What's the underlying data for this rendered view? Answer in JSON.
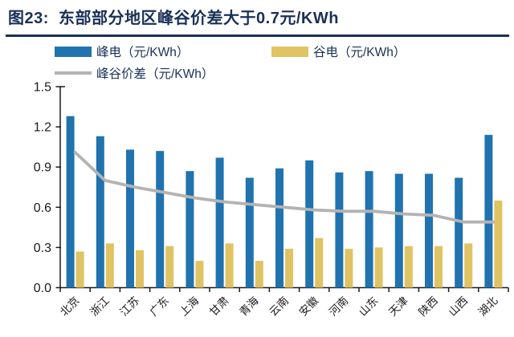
{
  "header": {
    "title": "图23:  东部部分地区峰谷价差大于0.7元/KWh"
  },
  "legend": {
    "peak_label": "峰电（元/KWh）",
    "valley_label": "谷电（元/KWh）",
    "diff_label": "峰谷价差（元/KWh）"
  },
  "colors": {
    "title_navy": "#1A3057",
    "peak_bar": "#2073AE",
    "valley_bar": "#E0C363",
    "diff_line": "#B3B3B3",
    "axis": "#1a1a1a"
  },
  "chart_data": {
    "type": "bar",
    "subtype": "grouped bars with overlaid line",
    "title": "图23:  东部部分地区峰谷价差大于0.7元/KWh",
    "categories": [
      "北京",
      "浙江",
      "江苏",
      "广东",
      "上海",
      "甘肃",
      "青海",
      "云南",
      "安徽",
      "河南",
      "山东",
      "天津",
      "陕西",
      "山西",
      "湖北"
    ],
    "series": [
      {
        "name": "峰电（元/KWh）",
        "type": "bar",
        "color": "#2073AE",
        "values": [
          1.28,
          1.13,
          1.03,
          1.02,
          0.87,
          0.97,
          0.82,
          0.89,
          0.95,
          0.86,
          0.87,
          0.85,
          0.85,
          0.82,
          1.14
        ]
      },
      {
        "name": "谷电（元/KWh）",
        "type": "bar",
        "color": "#E0C363",
        "values": [
          0.27,
          0.33,
          0.28,
          0.31,
          0.2,
          0.33,
          0.2,
          0.29,
          0.37,
          0.29,
          0.3,
          0.31,
          0.31,
          0.33,
          0.65
        ]
      },
      {
        "name": "峰谷价差（元/KWh）",
        "type": "line",
        "color": "#B3B3B3",
        "values": [
          1.01,
          0.8,
          0.75,
          0.71,
          0.67,
          0.64,
          0.62,
          0.6,
          0.58,
          0.57,
          0.57,
          0.55,
          0.54,
          0.49,
          0.49
        ]
      }
    ],
    "xlabel": "",
    "ylabel": "",
    "ylim": [
      0,
      1.5
    ],
    "ytick_labels": [
      "0.0",
      "0.3",
      "0.6",
      "0.9",
      "1.2",
      "1.5"
    ],
    "grid": false,
    "legend_position": "top"
  }
}
